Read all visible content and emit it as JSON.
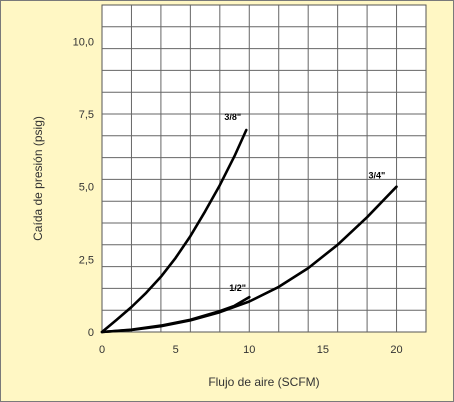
{
  "chart_data": {
    "type": "line",
    "title": "",
    "xlabel": "Flujo de aire (SCFM)",
    "ylabel": "Caída de presión (psig)",
    "xlim": [
      0,
      22
    ],
    "ylim": [
      0,
      11.25
    ],
    "x_ticks": [
      0,
      5,
      10,
      15,
      20
    ],
    "x_tick_labels": [
      "0",
      "5",
      "10",
      "15",
      "20"
    ],
    "y_ticks": [
      0,
      2.5,
      5,
      7.5,
      10
    ],
    "y_tick_labels": [
      "0",
      "2,5",
      "5,0",
      "7,5",
      "10,0"
    ],
    "grid": true,
    "legend": "none",
    "series": [
      {
        "name": "3/8\"",
        "x": [
          0,
          1,
          2,
          3,
          4,
          5,
          6,
          7,
          8,
          9,
          9.8
        ],
        "y": [
          0,
          0.42,
          0.86,
          1.35,
          1.9,
          2.55,
          3.3,
          4.15,
          5.05,
          6.05,
          6.95
        ]
      },
      {
        "name": "1/2\"",
        "x": [
          0,
          2,
          4,
          6,
          8,
          9,
          10
        ],
        "y": [
          0,
          0.08,
          0.22,
          0.42,
          0.72,
          0.9,
          1.2
        ]
      },
      {
        "name": "3/4\"",
        "x": [
          0,
          2,
          4,
          6,
          8,
          10,
          12,
          14,
          16,
          18,
          20
        ],
        "y": [
          0,
          0.07,
          0.2,
          0.4,
          0.68,
          1.05,
          1.55,
          2.2,
          3.0,
          3.95,
          5.0
        ]
      }
    ]
  }
}
